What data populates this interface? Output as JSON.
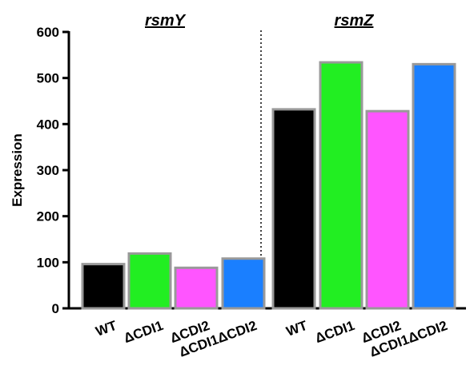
{
  "chart_data": {
    "type": "bar",
    "ylabel": "Expression",
    "ylim": [
      0,
      600
    ],
    "yticks": [
      0,
      100,
      200,
      300,
      400,
      500,
      600
    ],
    "groups": [
      {
        "title": "rsmY",
        "categories": [
          "WT",
          "ΔCDI1",
          "ΔCDI2",
          "ΔCDI1ΔCDI2"
        ],
        "values": [
          96,
          119,
          88,
          108
        ],
        "colors": [
          "#000000",
          "#22ee22",
          "#ff55ff",
          "#1a7fff"
        ]
      },
      {
        "title": "rsmZ",
        "categories": [
          "WT",
          "ΔCDI1",
          "ΔCDI2",
          "ΔCDI1ΔCDI2"
        ],
        "values": [
          432,
          534,
          428,
          530
        ],
        "colors": [
          "#000000",
          "#22ee22",
          "#ff55ff",
          "#1a7fff"
        ]
      }
    ],
    "bar_outline_color": "#999999",
    "separator": "dotted",
    "grid": false
  }
}
